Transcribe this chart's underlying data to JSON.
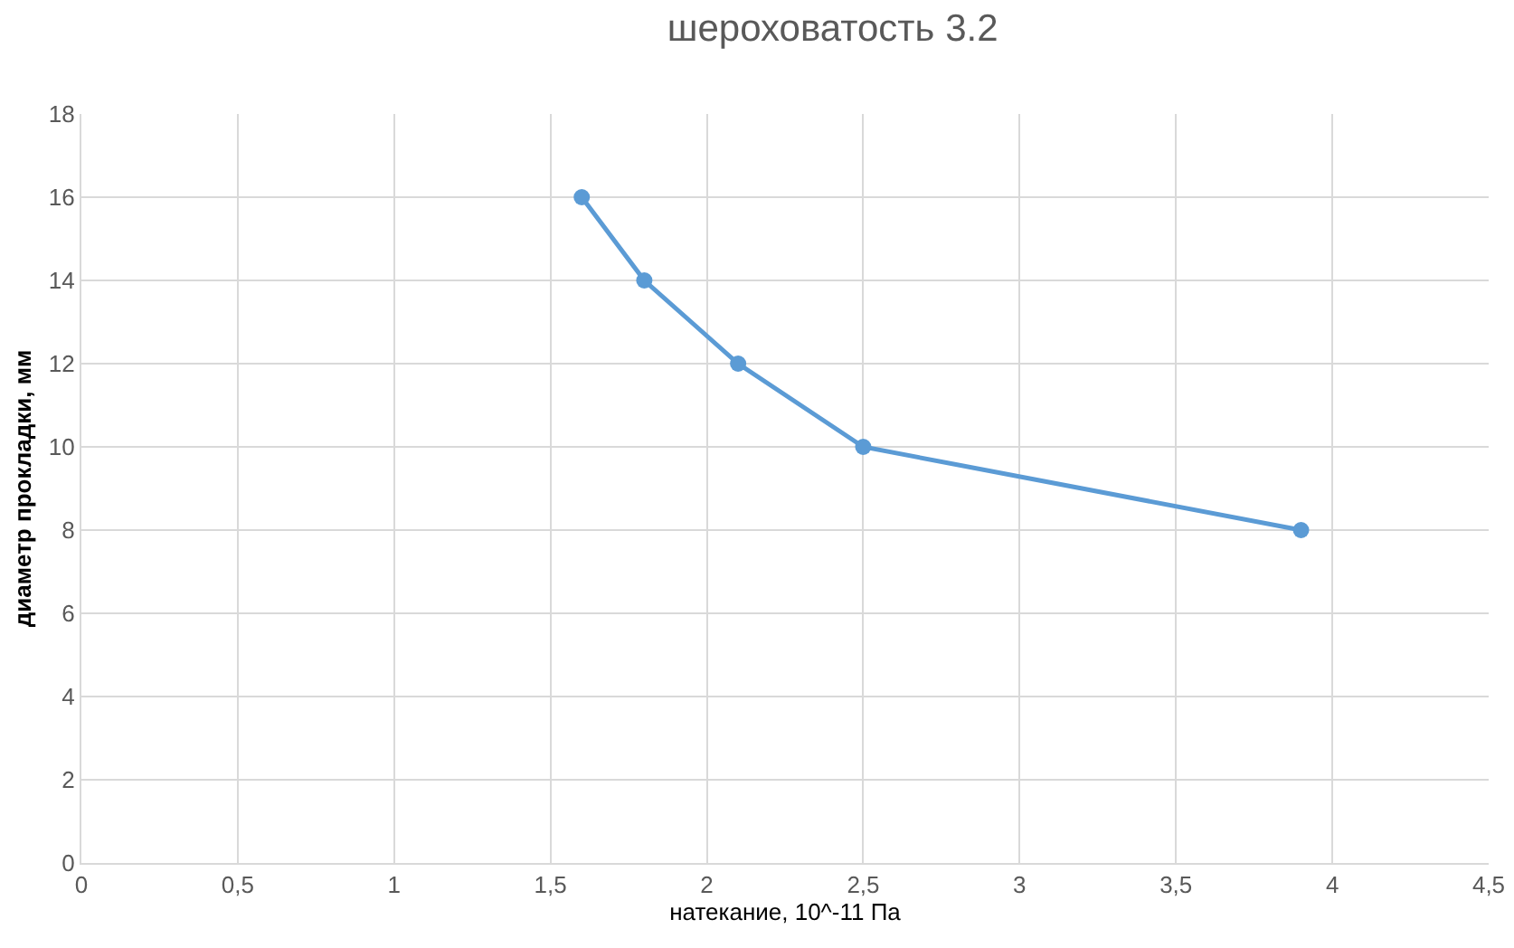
{
  "chart_data": {
    "type": "line",
    "title": "шероховатость 3.2",
    "xlabel": "натекание, 10^-11 Па",
    "ylabel": "диаметр прокладки, мм",
    "x": [
      1.6,
      1.8,
      2.1,
      2.5,
      3.9
    ],
    "series": [
      {
        "color": "#5b9bd5",
        "values": [
          16,
          14,
          12,
          10,
          8
        ]
      }
    ],
    "xlim": [
      0,
      4.5
    ],
    "xticks": [
      0,
      {
        "value": 0.5,
        "label": "0,5"
      },
      1,
      {
        "value": 1.5,
        "label": "1,5"
      },
      2,
      {
        "value": 2.5,
        "label": "2,5"
      },
      3,
      {
        "value": 3.5,
        "label": "3,5"
      },
      4,
      {
        "value": 4.5,
        "label": "4,5"
      }
    ],
    "ylim": [
      0,
      18
    ],
    "yticks": [
      0,
      2,
      4,
      6,
      8,
      10,
      12,
      14,
      16,
      18
    ],
    "grid": true,
    "marker": "circle",
    "line_style": "solid"
  }
}
